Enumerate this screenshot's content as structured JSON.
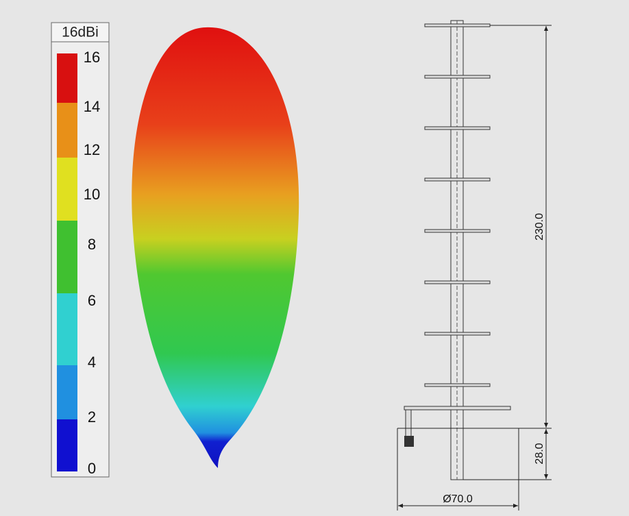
{
  "legend": {
    "title": "16dBi",
    "labels": [
      16,
      14,
      12,
      10,
      8,
      6,
      4,
      2,
      0
    ]
  },
  "dimensions": {
    "height": "230.0",
    "base": "28.0",
    "diameter": "Ø70.0"
  }
}
